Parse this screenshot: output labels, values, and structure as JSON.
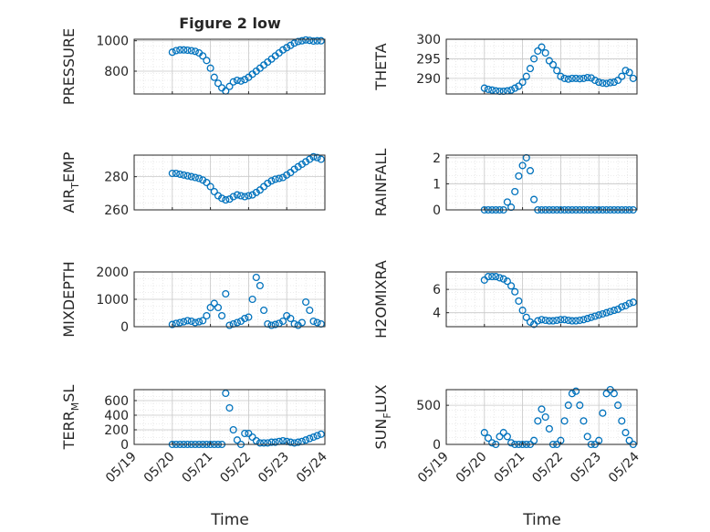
{
  "figure": {
    "title": "Figure 2 low",
    "xlabel": "Time",
    "x_tick_labels": [
      "05/19",
      "05/20",
      "05/21",
      "05/22",
      "05/23",
      "05/24"
    ],
    "marker_color": "#0072BD",
    "background": "#ffffff"
  },
  "chart_data": [
    {
      "type": "scatter",
      "name": "PRESSURE",
      "ylabel": "PRESSURE",
      "ylim": [
        650,
        1010
      ],
      "yticks": [
        800,
        1000
      ],
      "xlim": [
        0,
        5
      ],
      "x": [
        1,
        1.1,
        1.2,
        1.3,
        1.4,
        1.5,
        1.6,
        1.7,
        1.8,
        1.9,
        2,
        2.1,
        2.2,
        2.3,
        2.4,
        2.5,
        2.6,
        2.7,
        2.8,
        2.9,
        3,
        3.1,
        3.2,
        3.3,
        3.4,
        3.5,
        3.6,
        3.7,
        3.8,
        3.9,
        4,
        4.1,
        4.2,
        4.3,
        4.4,
        4.5,
        4.6,
        4.7,
        4.8,
        4.9
      ],
      "y": [
        925,
        935,
        940,
        940,
        938,
        935,
        930,
        920,
        900,
        870,
        820,
        760,
        720,
        690,
        670,
        700,
        730,
        740,
        735,
        745,
        760,
        780,
        800,
        820,
        840,
        860,
        880,
        900,
        920,
        940,
        955,
        970,
        985,
        995,
        1000,
        1005,
        1002,
        998,
        1000,
        1000
      ]
    },
    {
      "type": "scatter",
      "name": "THETA",
      "ylabel": "THETA",
      "ylim": [
        286,
        300
      ],
      "yticks": [
        290,
        295,
        300
      ],
      "xlim": [
        0,
        5
      ],
      "x": [
        1,
        1.1,
        1.2,
        1.3,
        1.4,
        1.5,
        1.6,
        1.7,
        1.8,
        1.9,
        2,
        2.1,
        2.2,
        2.3,
        2.4,
        2.5,
        2.6,
        2.7,
        2.8,
        2.9,
        3,
        3.1,
        3.2,
        3.3,
        3.4,
        3.5,
        3.6,
        3.7,
        3.8,
        3.9,
        4,
        4.1,
        4.2,
        4.3,
        4.4,
        4.5,
        4.6,
        4.7,
        4.8,
        4.9
      ],
      "y": [
        287.5,
        287.2,
        287,
        286.8,
        286.7,
        286.7,
        286.8,
        287,
        287.5,
        288,
        289,
        290.5,
        292.5,
        295,
        297,
        298,
        296.5,
        294.5,
        293.5,
        292,
        290.5,
        290,
        289.8,
        290,
        290,
        289.9,
        290,
        290.2,
        290.1,
        289.5,
        289,
        288.8,
        288.7,
        288.9,
        289,
        289.5,
        290.5,
        292,
        291.5,
        290
      ]
    },
    {
      "type": "scatter",
      "name": "AIR_TEMP",
      "ylabel": "AIR_TEMP",
      "ylim": [
        260,
        293
      ],
      "yticks": [
        260,
        280
      ],
      "xlim": [
        0,
        5
      ],
      "x": [
        1,
        1.1,
        1.2,
        1.3,
        1.4,
        1.5,
        1.6,
        1.7,
        1.8,
        1.9,
        2,
        2.1,
        2.2,
        2.3,
        2.4,
        2.5,
        2.6,
        2.7,
        2.8,
        2.9,
        3,
        3.1,
        3.2,
        3.3,
        3.4,
        3.5,
        3.6,
        3.7,
        3.8,
        3.9,
        4,
        4.1,
        4.2,
        4.3,
        4.4,
        4.5,
        4.6,
        4.7,
        4.8,
        4.9
      ],
      "y": [
        282,
        282,
        281.5,
        281,
        280.5,
        280,
        279.5,
        279,
        278,
        276.5,
        274,
        271,
        268.5,
        267,
        266,
        266.5,
        268,
        269,
        268.5,
        268,
        268.5,
        269,
        270.5,
        272,
        274,
        276,
        277.5,
        278.5,
        279,
        279.5,
        281,
        282.5,
        284.5,
        286,
        287.5,
        289,
        290.5,
        292,
        291.5,
        290.5
      ]
    },
    {
      "type": "scatter",
      "name": "RAINFALL",
      "ylabel": "RAINFALL",
      "ylim": [
        0,
        2.1
      ],
      "yticks": [
        0,
        1,
        2
      ],
      "xlim": [
        0,
        5
      ],
      "x": [
        1,
        1.1,
        1.2,
        1.3,
        1.4,
        1.5,
        1.6,
        1.7,
        1.8,
        1.9,
        2,
        2.1,
        2.2,
        2.3,
        2.4,
        2.5,
        2.6,
        2.7,
        2.8,
        2.9,
        3,
        3.1,
        3.2,
        3.3,
        3.4,
        3.5,
        3.6,
        3.7,
        3.8,
        3.9,
        4,
        4.1,
        4.2,
        4.3,
        4.4,
        4.5,
        4.6,
        4.7,
        4.8,
        4.9
      ],
      "y": [
        0,
        0,
        0,
        0,
        0,
        0,
        0.3,
        0.1,
        0.7,
        1.3,
        1.7,
        2,
        1.5,
        0.4,
        0,
        0,
        0,
        0,
        0,
        0,
        0,
        0,
        0,
        0,
        0,
        0,
        0,
        0,
        0,
        0,
        0,
        0,
        0,
        0,
        0,
        0,
        0,
        0,
        0,
        0
      ]
    },
    {
      "type": "scatter",
      "name": "MIXDEPTH",
      "ylabel": "MIXDEPTH",
      "ylim": [
        0,
        2000
      ],
      "yticks": [
        0,
        1000,
        2000
      ],
      "xlim": [
        0,
        5
      ],
      "x": [
        1,
        1.1,
        1.2,
        1.3,
        1.4,
        1.5,
        1.6,
        1.7,
        1.8,
        1.9,
        2,
        2.1,
        2.2,
        2.3,
        2.4,
        2.5,
        2.6,
        2.7,
        2.8,
        2.9,
        3,
        3.1,
        3.2,
        3.3,
        3.4,
        3.5,
        3.6,
        3.7,
        3.8,
        3.9,
        4,
        4.1,
        4.2,
        4.3,
        4.4,
        4.5,
        4.6,
        4.7,
        4.8,
        4.9
      ],
      "y": [
        80,
        120,
        150,
        180,
        220,
        200,
        150,
        180,
        220,
        400,
        700,
        850,
        700,
        400,
        1200,
        50,
        100,
        150,
        200,
        300,
        350,
        1000,
        1800,
        1500,
        600,
        100,
        50,
        80,
        120,
        200,
        400,
        300,
        100,
        50,
        150,
        900,
        600,
        200,
        150,
        100
      ]
    },
    {
      "type": "scatter",
      "name": "H2OMIXRA",
      "ylabel": "H2OMIXRA",
      "ylim": [
        2.8,
        7.5
      ],
      "yticks": [
        4,
        6
      ],
      "xlim": [
        0,
        5
      ],
      "x": [
        1,
        1.1,
        1.2,
        1.3,
        1.4,
        1.5,
        1.6,
        1.7,
        1.8,
        1.9,
        2,
        2.1,
        2.2,
        2.3,
        2.4,
        2.5,
        2.6,
        2.7,
        2.8,
        2.9,
        3,
        3.1,
        3.2,
        3.3,
        3.4,
        3.5,
        3.6,
        3.7,
        3.8,
        3.9,
        4,
        4.1,
        4.2,
        4.3,
        4.4,
        4.5,
        4.6,
        4.7,
        4.8,
        4.9
      ],
      "y": [
        6.8,
        7.1,
        7.1,
        7.1,
        7,
        6.9,
        6.7,
        6.3,
        5.8,
        5,
        4.2,
        3.6,
        3.2,
        3,
        3.3,
        3.4,
        3.35,
        3.3,
        3.3,
        3.35,
        3.4,
        3.4,
        3.35,
        3.3,
        3.3,
        3.35,
        3.4,
        3.5,
        3.6,
        3.7,
        3.8,
        3.9,
        4,
        4.1,
        4.2,
        4.3,
        4.5,
        4.6,
        4.8,
        4.9
      ]
    },
    {
      "type": "scatter",
      "name": "TERR_MSL",
      "ylabel": "TERR_MSL",
      "ylim": [
        0,
        750
      ],
      "yticks": [
        0,
        200,
        400,
        600
      ],
      "xlim": [
        0,
        5
      ],
      "x": [
        1,
        1.1,
        1.2,
        1.3,
        1.4,
        1.5,
        1.6,
        1.7,
        1.8,
        1.9,
        2,
        2.1,
        2.2,
        2.3,
        2.4,
        2.5,
        2.6,
        2.7,
        2.8,
        2.9,
        3,
        3.1,
        3.2,
        3.3,
        3.4,
        3.5,
        3.6,
        3.7,
        3.8,
        3.9,
        4,
        4.1,
        4.2,
        4.3,
        4.4,
        4.5,
        4.6,
        4.7,
        4.8,
        4.9
      ],
      "y": [
        0,
        0,
        0,
        0,
        0,
        0,
        0,
        0,
        0,
        0,
        0,
        0,
        0,
        0,
        700,
        500,
        200,
        60,
        0,
        150,
        150,
        100,
        50,
        20,
        20,
        20,
        30,
        30,
        40,
        50,
        40,
        30,
        20,
        30,
        40,
        60,
        80,
        100,
        120,
        140
      ]
    },
    {
      "type": "scatter",
      "name": "SUN_FLUX",
      "ylabel": "SUN_FLUX",
      "ylim": [
        0,
        700
      ],
      "yticks": [
        0,
        500
      ],
      "xlim": [
        0,
        5
      ],
      "x": [
        1,
        1.1,
        1.2,
        1.3,
        1.4,
        1.5,
        1.6,
        1.7,
        1.8,
        1.9,
        2,
        2.1,
        2.2,
        2.3,
        2.4,
        2.5,
        2.6,
        2.7,
        2.8,
        2.9,
        3,
        3.1,
        3.2,
        3.3,
        3.4,
        3.5,
        3.6,
        3.7,
        3.8,
        3.9,
        4,
        4.1,
        4.2,
        4.3,
        4.4,
        4.5,
        4.6,
        4.7,
        4.8,
        4.9
      ],
      "y": [
        150,
        80,
        20,
        0,
        100,
        150,
        100,
        20,
        0,
        0,
        0,
        0,
        0,
        50,
        300,
        450,
        350,
        200,
        0,
        0,
        50,
        300,
        500,
        650,
        680,
        500,
        300,
        100,
        0,
        0,
        50,
        400,
        650,
        700,
        650,
        500,
        300,
        150,
        50,
        0
      ]
    }
  ]
}
